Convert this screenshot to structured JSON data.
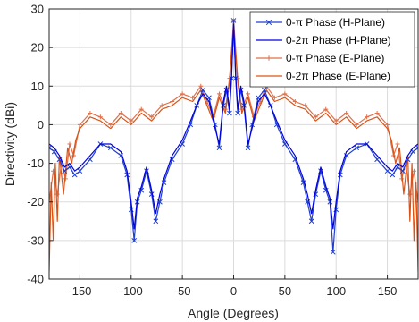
{
  "chart_data": {
    "type": "line",
    "xlabel": "Angle (Degrees)",
    "ylabel": "Directivity (dBi)",
    "xlim": [
      -180,
      180
    ],
    "ylim": [
      -40,
      30
    ],
    "x_ticks": [
      -150,
      -100,
      -50,
      0,
      50,
      100,
      150
    ],
    "y_ticks": [
      -40,
      -30,
      -20,
      -10,
      0,
      10,
      20,
      30
    ],
    "grid": true,
    "legend_position": "top-right",
    "series": [
      {
        "name": "0-π Phase (H-Plane)",
        "color": "#1f3fd0",
        "marker": "x",
        "x": [
          -180,
          -175,
          -170,
          -165,
          -160,
          -155,
          -150,
          -140,
          -130,
          -120,
          -110,
          -104,
          -100,
          -97,
          -94,
          -90,
          -85,
          -80,
          -76,
          -72,
          -68,
          -60,
          -50,
          -42,
          -36,
          -30,
          -24,
          -18,
          -14,
          -10,
          -7,
          -4,
          -2,
          0,
          2,
          4,
          7,
          10,
          14,
          18,
          24,
          30,
          36,
          42,
          50,
          60,
          68,
          72,
          76,
          80,
          85,
          90,
          94,
          97,
          100,
          104,
          110,
          120,
          130,
          140,
          150,
          155,
          160,
          165,
          170,
          175,
          180
        ],
        "y": [
          -6,
          -7,
          -9,
          -12,
          -11,
          -13,
          -12,
          -9,
          -5,
          -6,
          -8,
          -13,
          -22,
          -30,
          -20,
          -17,
          -12,
          -18,
          -25,
          -20,
          -15,
          -9,
          -5,
          0,
          5,
          9,
          7,
          0,
          -6,
          5,
          9,
          3,
          12,
          27,
          12,
          3,
          9,
          5,
          -6,
          0,
          7,
          9,
          5,
          0,
          -5,
          -9,
          -15,
          -20,
          -25,
          -18,
          -12,
          -17,
          -20,
          -33,
          -22,
          -13,
          -8,
          -6,
          -5,
          -9,
          -12,
          -13,
          -11,
          -12,
          -9,
          -7,
          -6
        ]
      },
      {
        "name": "0-2π Phase (H-Plane)",
        "color": "#0000e0",
        "marker": "none",
        "x": [
          -180,
          -175,
          -170,
          -165,
          -160,
          -155,
          -150,
          -140,
          -130,
          -120,
          -110,
          -104,
          -100,
          -97,
          -94,
          -90,
          -85,
          -80,
          -76,
          -72,
          -68,
          -60,
          -50,
          -42,
          -36,
          -30,
          -24,
          -18,
          -14,
          -10,
          -7,
          -4,
          -2,
          0,
          2,
          4,
          7,
          10,
          14,
          18,
          24,
          30,
          36,
          42,
          50,
          60,
          68,
          72,
          76,
          80,
          85,
          90,
          94,
          97,
          100,
          104,
          110,
          120,
          130,
          140,
          150,
          155,
          160,
          165,
          170,
          175,
          180
        ],
        "y": [
          -5,
          -6,
          -8,
          -11,
          -10,
          -12,
          -11,
          -8,
          -5,
          -5,
          -7,
          -12,
          -20,
          -27,
          -19,
          -16,
          -11,
          -17,
          -23,
          -18,
          -14,
          -8,
          -4,
          1,
          5,
          8,
          6,
          -1,
          -5,
          6,
          10,
          4,
          13,
          26,
          13,
          4,
          10,
          6,
          -5,
          -1,
          6,
          8,
          5,
          1,
          -4,
          -8,
          -14,
          -18,
          -23,
          -17,
          -11,
          -16,
          -19,
          -27,
          -20,
          -12,
          -7,
          -5,
          -5,
          -8,
          -11,
          -12,
          -10,
          -11,
          -8,
          -6,
          -5
        ]
      },
      {
        "name": "0-π Phase (E-Plane)",
        "color": "#e0704a",
        "marker": "+",
        "x": [
          -180,
          -176,
          -172,
          -168,
          -164,
          -160,
          -156,
          -150,
          -140,
          -130,
          -120,
          -110,
          -100,
          -90,
          -80,
          -70,
          -60,
          -50,
          -40,
          -32,
          -26,
          -20,
          -14,
          -8,
          -4,
          0,
          4,
          8,
          14,
          20,
          26,
          32,
          40,
          50,
          60,
          70,
          80,
          90,
          100,
          110,
          120,
          130,
          140,
          150,
          156,
          160,
          164,
          168,
          172,
          176,
          180
        ],
        "y": [
          -20,
          -12,
          -18,
          -10,
          -14,
          -5,
          -8,
          0,
          3,
          2,
          0,
          3,
          1,
          4,
          2,
          5,
          6,
          8,
          7,
          10,
          6,
          2,
          8,
          4,
          12,
          27,
          12,
          4,
          8,
          2,
          6,
          10,
          7,
          8,
          6,
          5,
          2,
          4,
          1,
          3,
          0,
          2,
          3,
          0,
          -8,
          -5,
          -14,
          -10,
          -18,
          -12,
          -20
        ]
      },
      {
        "name": "0-2π Phase (E-Plane)",
        "color": "#d95319",
        "marker": "none",
        "x": [
          -180,
          -178,
          -176,
          -174,
          -172,
          -170,
          -166,
          -162,
          -158,
          -154,
          -150,
          -140,
          -130,
          -120,
          -110,
          -100,
          -90,
          -80,
          -70,
          -60,
          -50,
          -40,
          -32,
          -26,
          -20,
          -14,
          -8,
          -4,
          0,
          4,
          8,
          14,
          20,
          26,
          32,
          40,
          50,
          60,
          70,
          80,
          90,
          100,
          110,
          120,
          130,
          140,
          150,
          154,
          158,
          162,
          166,
          170,
          172,
          174,
          176,
          178,
          180
        ],
        "y": [
          -38,
          -15,
          -30,
          -10,
          -25,
          -8,
          -18,
          -6,
          -10,
          -4,
          -1,
          2,
          1,
          -1,
          2,
          0,
          3,
          1,
          4,
          5,
          7,
          6,
          9,
          5,
          1,
          7,
          3,
          11,
          26,
          11,
          3,
          7,
          1,
          5,
          9,
          6,
          7,
          5,
          4,
          1,
          3,
          0,
          2,
          -1,
          1,
          2,
          -1,
          -4,
          -10,
          -6,
          -18,
          -8,
          -25,
          -10,
          -30,
          -15,
          -38
        ]
      }
    ]
  }
}
